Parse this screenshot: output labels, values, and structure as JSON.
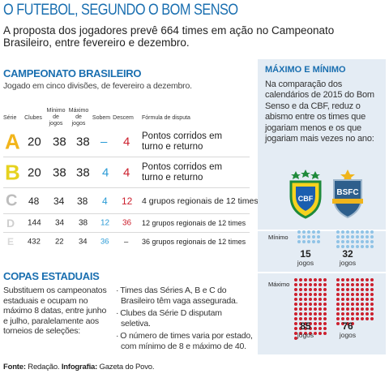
{
  "header": {
    "title": "O FUTEBOL, SEGUNDO O BOM SENSO",
    "subtitle": "A proposta dos jogadores prevê 664 times em ação no Campeonato Brasileiro, entre fevereiro e dezembro."
  },
  "campeonato": {
    "heading": "CAMPEONATO BRASILEIRO",
    "note": "Jogado em cinco divisões, de fevereiro a dezembro.",
    "columns": {
      "serie": "Série",
      "clubes": "Clubes",
      "minimo": "Mínimo de jogos",
      "maximo": "Máximo de jogos",
      "sobem": "Sobem",
      "descem": "Descem",
      "formula": "Fórmula de disputa"
    },
    "rows": [
      {
        "serie": "A",
        "clubes": "20",
        "minimo": "38",
        "maximo": "38",
        "sobem": "–",
        "descem": "4",
        "formula": "Pontos corridos em turno e returno",
        "color": "#f2b51c"
      },
      {
        "serie": "B",
        "clubes": "20",
        "minimo": "38",
        "maximo": "38",
        "sobem": "4",
        "descem": "4",
        "formula": "Pontos corridos em turno e returno",
        "color": "#e6d21e"
      },
      {
        "serie": "C",
        "clubes": "48",
        "minimo": "34",
        "maximo": "38",
        "sobem": "4",
        "descem": "12",
        "formula": "4 grupos regionais de 12 times",
        "color": "#bdbdbd"
      },
      {
        "serie": "D",
        "clubes": "144",
        "minimo": "34",
        "maximo": "38",
        "sobem": "12",
        "descem": "36",
        "formula": "12 grupos regionais de 12 times",
        "color": "#cfcfcf"
      },
      {
        "serie": "E",
        "clubes": "432",
        "minimo": "22",
        "maximo": "34",
        "sobem": "36",
        "descem": "–",
        "formula": "36 grupos regionais de 12 times",
        "color": "#d9d9d9"
      }
    ]
  },
  "copas": {
    "heading": "COPAS ESTADUAIS",
    "text": "Substituem os campeonatos estaduais e ocupam no máximo 8 datas, entre junho e julho, paralelamente aos torneios de seleções:",
    "bullets": [
      "Times das Séries A, B e C do Brasileiro têm vaga assegurada.",
      "Clubes da Série D disputam seletiva.",
      "O número de times varia por estado, com mínimo de 8 e máximo de 40."
    ]
  },
  "panel": {
    "heading": "MÁXIMO E MÍNIMO",
    "text": "Na comparação dos calendários de 2015 do Bom Senso e da CBF, reduz o abismo entre os times que jogariam menos e os que jogariam mais vezes no ano:",
    "cbf_logo_text": "CBF",
    "bsfc_logo_text": "BSFC",
    "minimo_label": "Mínimo",
    "maximo_label": "Máximo",
    "cbf_min": "15",
    "bsfc_min": "32",
    "cbf_max": "85",
    "bsfc_max": "76",
    "jogos_label": "jogos",
    "blue": "#8fc3e6",
    "red": "#cc1f2d"
  },
  "source": {
    "fonte_label": "Fonte:",
    "fonte": "Redação.",
    "infografia_label": "Infografia:",
    "infografia": "Gazeta do Povo."
  }
}
